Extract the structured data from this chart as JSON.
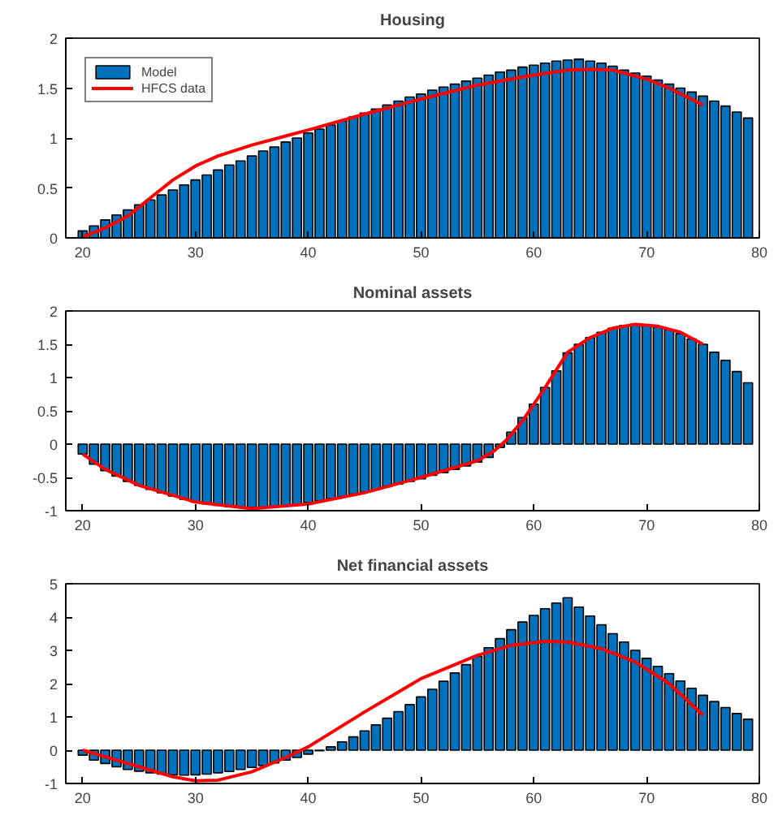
{
  "chart_data": [
    {
      "type": "bar",
      "title": "Housing",
      "x": [
        20,
        21,
        22,
        23,
        24,
        25,
        26,
        27,
        28,
        29,
        30,
        31,
        32,
        33,
        34,
        35,
        36,
        37,
        38,
        39,
        40,
        41,
        42,
        43,
        44,
        45,
        46,
        47,
        48,
        49,
        50,
        51,
        52,
        53,
        54,
        55,
        56,
        57,
        58,
        59,
        60,
        61,
        62,
        63,
        64,
        65,
        66,
        67,
        68,
        69,
        70,
        71,
        72,
        73,
        74,
        75,
        76,
        77,
        78,
        79
      ],
      "series": [
        {
          "name": "Model",
          "color": "#0072bd",
          "values": [
            0.07,
            0.12,
            0.18,
            0.23,
            0.28,
            0.33,
            0.38,
            0.43,
            0.48,
            0.53,
            0.58,
            0.63,
            0.68,
            0.73,
            0.77,
            0.82,
            0.87,
            0.91,
            0.96,
            1.0,
            1.05,
            1.09,
            1.13,
            1.17,
            1.21,
            1.25,
            1.29,
            1.33,
            1.37,
            1.41,
            1.44,
            1.48,
            1.51,
            1.54,
            1.57,
            1.6,
            1.63,
            1.66,
            1.68,
            1.71,
            1.73,
            1.75,
            1.77,
            1.78,
            1.79,
            1.77,
            1.75,
            1.72,
            1.68,
            1.65,
            1.62,
            1.58,
            1.54,
            1.5,
            1.46,
            1.42,
            1.37,
            1.32,
            1.26,
            1.2
          ]
        },
        {
          "name": "HFCS data",
          "type": "line",
          "color": "#ff0000",
          "x": [
            20,
            22,
            24,
            26,
            28,
            30,
            32,
            35,
            38,
            40,
            45,
            50,
            55,
            60,
            63,
            65,
            67,
            70,
            72,
            75
          ],
          "values": [
            0.01,
            0.1,
            0.22,
            0.4,
            0.58,
            0.72,
            0.82,
            0.93,
            1.02,
            1.08,
            1.24,
            1.39,
            1.53,
            1.63,
            1.68,
            1.69,
            1.68,
            1.59,
            1.5,
            1.33
          ]
        }
      ],
      "xlim": [
        18.5,
        80
      ],
      "xticks": [
        20,
        30,
        40,
        50,
        60,
        70,
        80
      ],
      "ylim": [
        0,
        2
      ],
      "yticks": [
        0,
        0.5,
        1,
        1.5,
        2
      ],
      "legend": "top left",
      "grid": false
    },
    {
      "type": "bar",
      "title": "Nominal assets",
      "x": [
        20,
        21,
        22,
        23,
        24,
        25,
        26,
        27,
        28,
        29,
        30,
        31,
        32,
        33,
        34,
        35,
        36,
        37,
        38,
        39,
        40,
        41,
        42,
        43,
        44,
        45,
        46,
        47,
        48,
        49,
        50,
        51,
        52,
        53,
        54,
        55,
        56,
        57,
        58,
        59,
        60,
        61,
        62,
        63,
        64,
        65,
        66,
        67,
        68,
        69,
        70,
        71,
        72,
        73,
        74,
        75,
        76,
        77,
        78,
        79
      ],
      "series": [
        {
          "color": "#0072bd",
          "values": [
            -0.15,
            -0.3,
            -0.4,
            -0.48,
            -0.56,
            -0.62,
            -0.68,
            -0.73,
            -0.78,
            -0.83,
            -0.87,
            -0.9,
            -0.92,
            -0.94,
            -0.95,
            -0.95,
            -0.95,
            -0.94,
            -0.92,
            -0.9,
            -0.88,
            -0.85,
            -0.82,
            -0.79,
            -0.75,
            -0.72,
            -0.68,
            -0.64,
            -0.6,
            -0.56,
            -0.52,
            -0.47,
            -0.43,
            -0.38,
            -0.33,
            -0.27,
            -0.2,
            -0.05,
            0.18,
            0.4,
            0.6,
            0.85,
            1.1,
            1.37,
            1.5,
            1.6,
            1.68,
            1.74,
            1.78,
            1.8,
            1.79,
            1.76,
            1.72,
            1.66,
            1.58,
            1.5,
            1.38,
            1.26,
            1.09,
            0.92
          ]
        },
        {
          "type": "line",
          "color": "#ff0000",
          "x": [
            20,
            22,
            25,
            30,
            35,
            40,
            45,
            50,
            55,
            56.5,
            57.5,
            59,
            61,
            63,
            65,
            67,
            69,
            71,
            73,
            75
          ],
          "values": [
            -0.15,
            -0.38,
            -0.62,
            -0.87,
            -0.97,
            -0.9,
            -0.73,
            -0.5,
            -0.25,
            -0.1,
            0.05,
            0.35,
            0.85,
            1.38,
            1.6,
            1.74,
            1.8,
            1.77,
            1.68,
            1.5
          ]
        }
      ],
      "xlim": [
        18.5,
        80
      ],
      "xticks": [
        20,
        30,
        40,
        50,
        60,
        70,
        80
      ],
      "ylim": [
        -1,
        2
      ],
      "yticks": [
        -1,
        -0.5,
        0,
        0.5,
        1,
        1.5,
        2
      ],
      "grid": false
    },
    {
      "type": "bar",
      "title": "Net financial assets",
      "x": [
        20,
        21,
        22,
        23,
        24,
        25,
        26,
        27,
        28,
        29,
        30,
        31,
        32,
        33,
        34,
        35,
        36,
        37,
        38,
        39,
        40,
        41,
        42,
        43,
        44,
        45,
        46,
        47,
        48,
        49,
        50,
        51,
        52,
        53,
        54,
        55,
        56,
        57,
        58,
        59,
        60,
        61,
        62,
        63,
        64,
        65,
        66,
        67,
        68,
        69,
        70,
        71,
        72,
        73,
        74,
        75,
        76,
        77,
        78,
        79
      ],
      "series": [
        {
          "color": "#0072bd",
          "values": [
            -0.15,
            -0.3,
            -0.4,
            -0.5,
            -0.58,
            -0.63,
            -0.68,
            -0.72,
            -0.74,
            -0.75,
            -0.74,
            -0.72,
            -0.68,
            -0.64,
            -0.58,
            -0.52,
            -0.46,
            -0.38,
            -0.3,
            -0.22,
            -0.12,
            -0.02,
            0.1,
            0.25,
            0.4,
            0.58,
            0.76,
            0.96,
            1.16,
            1.37,
            1.6,
            1.83,
            2.07,
            2.32,
            2.57,
            2.82,
            3.08,
            3.35,
            3.62,
            3.85,
            4.05,
            4.25,
            4.42,
            4.58,
            4.3,
            4.03,
            3.77,
            3.5,
            3.25,
            3.0,
            2.76,
            2.52,
            2.3,
            2.08,
            1.86,
            1.65,
            1.46,
            1.28,
            1.1,
            0.93
          ]
        },
        {
          "type": "line",
          "color": "#ff0000",
          "x": [
            20,
            22,
            25,
            28,
            30,
            32,
            35,
            38,
            40,
            45,
            50,
            55,
            58,
            61,
            63,
            66,
            69,
            72,
            75
          ],
          "values": [
            0,
            -0.2,
            -0.5,
            -0.8,
            -0.92,
            -0.9,
            -0.65,
            -0.22,
            0.1,
            1.15,
            2.15,
            2.85,
            3.15,
            3.27,
            3.25,
            3.05,
            2.65,
            2.0,
            1.05
          ]
        }
      ],
      "xlim": [
        18.5,
        80
      ],
      "xticks": [
        20,
        30,
        40,
        50,
        60,
        70,
        80
      ],
      "ylim": [
        -1,
        5
      ],
      "yticks": [
        -1,
        0,
        1,
        2,
        3,
        4,
        5
      ],
      "grid": false
    }
  ]
}
